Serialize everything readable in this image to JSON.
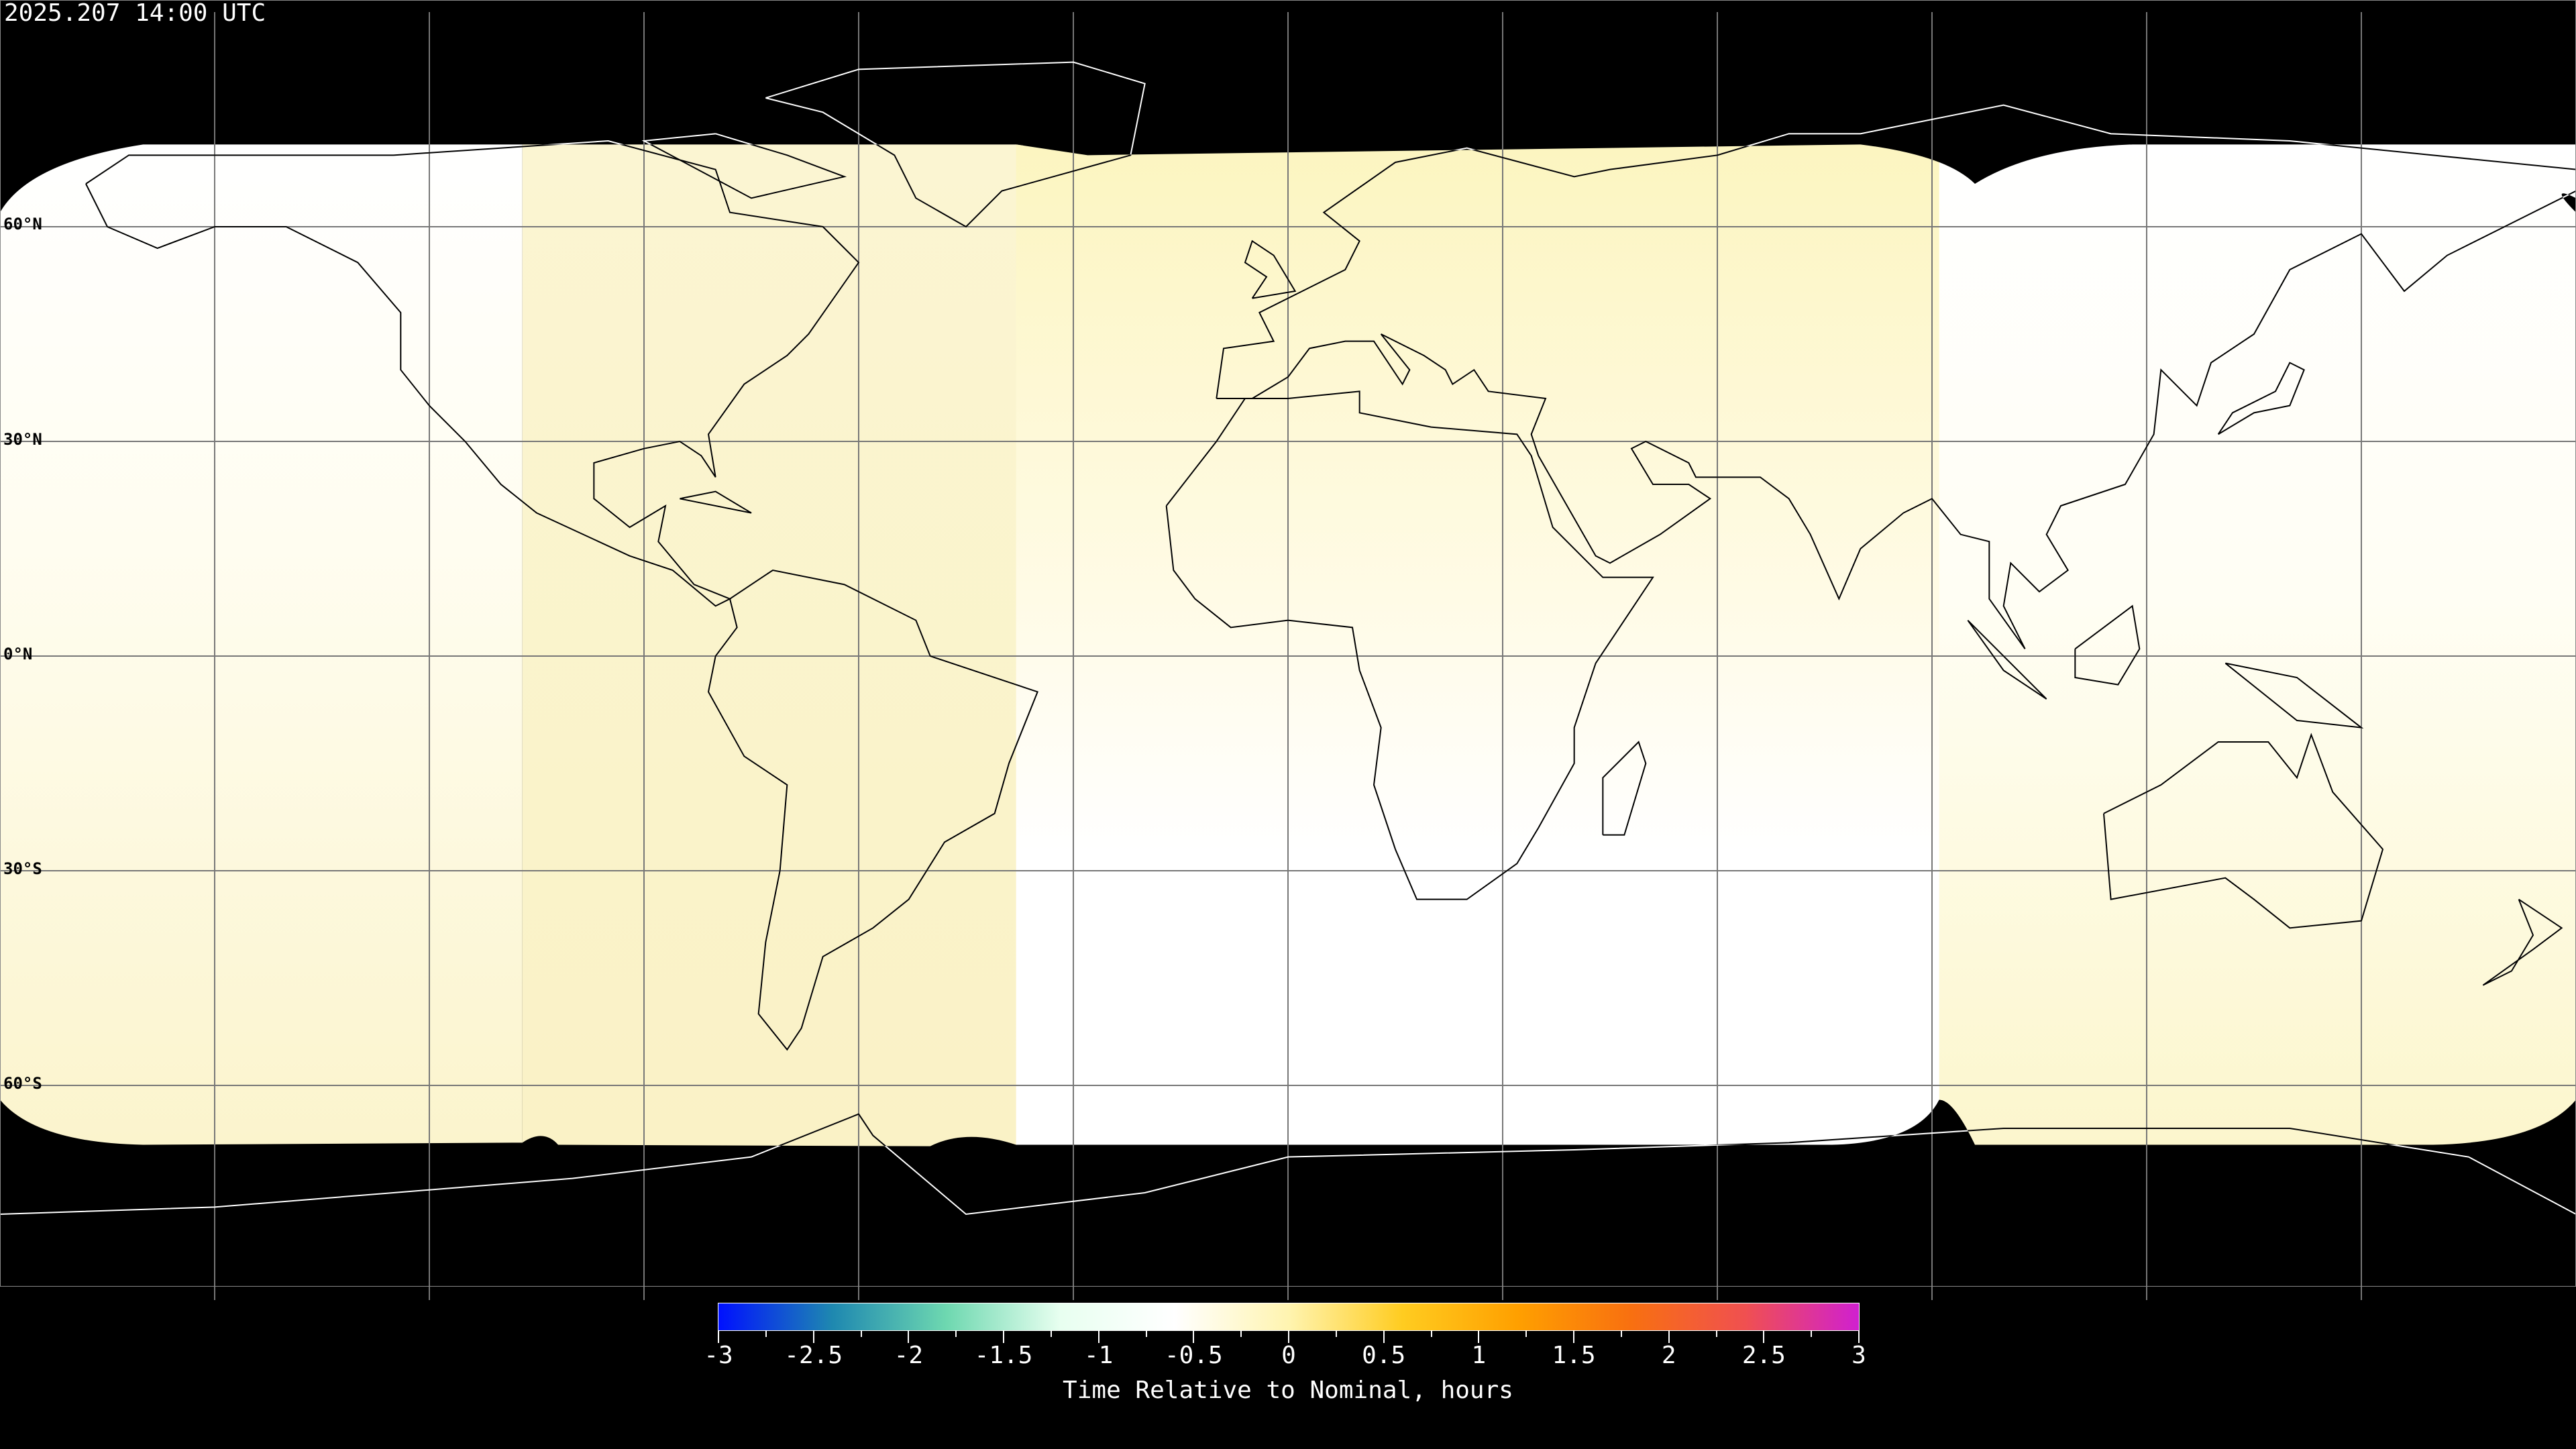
{
  "title": "2025.207 14:00 UTC",
  "latitude_labels": [
    "60°N",
    "30°N",
    "0°N",
    "30°S",
    "60°S"
  ],
  "colorbar": {
    "label": "Time Relative to Nominal, hours",
    "range": [
      -3,
      3
    ],
    "tick_labels": [
      "-3",
      "-2.5",
      "-2",
      "-1.5",
      "-1",
      "-0.5",
      "0",
      "0.5",
      "1",
      "1.5",
      "2",
      "2.5",
      "3"
    ],
    "colors": [
      "#0010ff",
      "#1e88b0",
      "#6ed8b0",
      "#e8fff0",
      "#ffffff",
      "#fff4b0",
      "#ffcc20",
      "#ffa000",
      "#f87010",
      "#f05050",
      "#d020d0"
    ]
  },
  "map": {
    "projection": "equirectangular",
    "coverage_colors": [
      "#ffffff",
      "#fdf8d4",
      "#fbf3c2"
    ],
    "no_data_color": "#000000"
  }
}
